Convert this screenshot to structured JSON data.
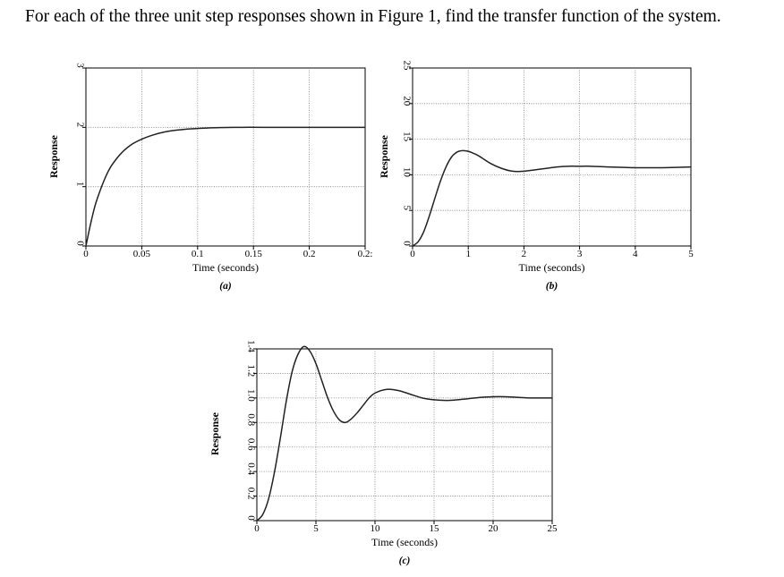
{
  "question": "For each of the three unit step responses shown in Figure 1, find the transfer function of the system.",
  "chart_data": [
    {
      "id": "a",
      "type": "line",
      "panel_label": "(a)",
      "xlabel": "Time (seconds)",
      "ylabel": "Response",
      "xlim": [
        0,
        0.25
      ],
      "ylim": [
        0,
        3
      ],
      "x_ticks": [
        "0",
        "0.05",
        "0.1",
        "0.15",
        "0.2",
        "0.2:"
      ],
      "x_tick_values": [
        0,
        0.05,
        0.1,
        0.15,
        0.2,
        0.25
      ],
      "y_ticks": [
        "0",
        "1",
        "2",
        "3"
      ],
      "y_tick_values": [
        0,
        1,
        2,
        3
      ],
      "grid": true,
      "series": [
        {
          "x": [
            0,
            0.005,
            0.01,
            0.02,
            0.03,
            0.04,
            0.05,
            0.06,
            0.07,
            0.08,
            0.09,
            0.1,
            0.11,
            0.12,
            0.14,
            0.16,
            0.2,
            0.25
          ],
          "y": [
            0,
            0.44,
            0.79,
            1.26,
            1.53,
            1.7,
            1.8,
            1.87,
            1.92,
            1.95,
            1.97,
            1.98,
            1.99,
            1.995,
            2.0,
            2.0,
            2.0,
            2.0
          ]
        }
      ]
    },
    {
      "id": "b",
      "type": "line",
      "panel_label": "(b)",
      "xlabel": "Time (seconds)",
      "ylabel": "Response",
      "xlim": [
        0,
        5
      ],
      "ylim": [
        0,
        25
      ],
      "x_ticks": [
        "0",
        "1",
        "2",
        "3",
        "4",
        "5"
      ],
      "x_tick_values": [
        0,
        1,
        2,
        3,
        4,
        5
      ],
      "y_ticks": [
        "0",
        "5",
        "10",
        "15",
        "20",
        "25"
      ],
      "y_tick_values": [
        0,
        5,
        10,
        15,
        20,
        25
      ],
      "grid": true,
      "series": [
        {
          "x": [
            0,
            0.1,
            0.2,
            0.3,
            0.4,
            0.5,
            0.6,
            0.7,
            0.8,
            0.9,
            1.0,
            1.1,
            1.2,
            1.4,
            1.6,
            1.8,
            2.0,
            2.2,
            2.4,
            2.6,
            2.8,
            3.0,
            3.2,
            3.5,
            4.0,
            4.5,
            5.0
          ],
          "y": [
            0,
            0.6,
            2.0,
            4.2,
            6.7,
            9.1,
            11.1,
            12.5,
            13.2,
            13.4,
            13.3,
            13.0,
            12.6,
            11.6,
            10.9,
            10.5,
            10.5,
            10.7,
            10.9,
            11.1,
            11.2,
            11.2,
            11.2,
            11.1,
            11.0,
            11.0,
            11.1
          ]
        }
      ]
    },
    {
      "id": "c",
      "type": "line",
      "panel_label": "(c)",
      "xlabel": "Time (seconds)",
      "ylabel": "Response",
      "xlim": [
        0,
        25
      ],
      "ylim": [
        0,
        1.4
      ],
      "x_ticks": [
        "0",
        "5",
        "10",
        "15",
        "20",
        "25"
      ],
      "x_tick_values": [
        0,
        5,
        10,
        15,
        20,
        25
      ],
      "y_ticks": [
        "0",
        "0.2",
        "0.4",
        "0.6",
        "0.8",
        "1.0",
        "1.2",
        "1.4"
      ],
      "y_tick_values": [
        0,
        0.2,
        0.4,
        0.6,
        0.8,
        1.0,
        1.2,
        1.4
      ],
      "grid": true,
      "series": [
        {
          "x": [
            0,
            0.5,
            1.0,
            1.5,
            2.0,
            2.5,
            3.0,
            3.5,
            4.0,
            4.5,
            5.0,
            5.5,
            6.0,
            6.5,
            7.0,
            7.5,
            8.0,
            8.5,
            9.0,
            9.5,
            10.0,
            11.0,
            12.0,
            13.0,
            14.0,
            15.0,
            16.0,
            17.0,
            18.0,
            19.0,
            20.0,
            21.0,
            22.0,
            23.0,
            24.0,
            25.0
          ],
          "y": [
            0,
            0.05,
            0.18,
            0.4,
            0.68,
            0.98,
            1.22,
            1.36,
            1.42,
            1.38,
            1.28,
            1.14,
            1.0,
            0.89,
            0.82,
            0.8,
            0.83,
            0.88,
            0.94,
            1.0,
            1.04,
            1.07,
            1.06,
            1.03,
            1.0,
            0.985,
            0.98,
            0.985,
            0.995,
            1.005,
            1.01,
            1.01,
            1.005,
            1.0,
            1.0,
            1.0
          ]
        }
      ]
    }
  ]
}
